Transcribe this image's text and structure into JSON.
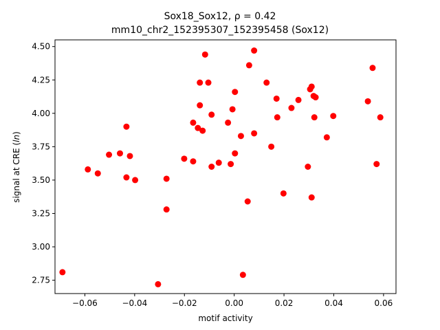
{
  "chart_data": {
    "type": "scatter",
    "title": "Sox18_Sox12, ρ = 0.42",
    "subtitle": "mm10_chr2_152395307_152395458 (Sox12)",
    "xlabel": "motif activity",
    "ylabel": "signal at CRE (ln)",
    "xlim": [
      -0.072,
      0.065
    ],
    "ylim": [
      2.65,
      4.55
    ],
    "x_ticks": [
      -0.06,
      -0.04,
      -0.02,
      0.0,
      0.02,
      0.04,
      0.06
    ],
    "x_tick_labels": [
      "−0.06",
      "−0.04",
      "−0.02",
      "0.00",
      "0.02",
      "0.04",
      "0.06"
    ],
    "y_ticks": [
      2.75,
      3.0,
      3.25,
      3.5,
      3.75,
      4.0,
      4.25,
      4.5
    ],
    "y_tick_labels": [
      "2.75",
      "3.00",
      "3.25",
      "3.50",
      "3.75",
      "4.00",
      "4.25",
      "4.50"
    ],
    "grid": false,
    "marker_color": "#ff0000",
    "points": [
      {
        "x": -0.069,
        "y": 2.81
      },
      {
        "x": -0.0588,
        "y": 3.58
      },
      {
        "x": -0.0548,
        "y": 3.55
      },
      {
        "x": -0.0503,
        "y": 3.69
      },
      {
        "x": -0.0459,
        "y": 3.7
      },
      {
        "x": -0.0433,
        "y": 3.9
      },
      {
        "x": -0.0433,
        "y": 3.52
      },
      {
        "x": -0.0419,
        "y": 3.68
      },
      {
        "x": -0.0398,
        "y": 3.5
      },
      {
        "x": -0.0306,
        "y": 2.72
      },
      {
        "x": -0.0272,
        "y": 3.51
      },
      {
        "x": -0.0272,
        "y": 3.28
      },
      {
        "x": -0.0201,
        "y": 3.66
      },
      {
        "x": -0.0165,
        "y": 3.93
      },
      {
        "x": -0.0165,
        "y": 3.64
      },
      {
        "x": -0.0146,
        "y": 3.89
      },
      {
        "x": -0.0138,
        "y": 4.23
      },
      {
        "x": -0.0138,
        "y": 4.06
      },
      {
        "x": -0.0127,
        "y": 3.87
      },
      {
        "x": -0.0117,
        "y": 4.44
      },
      {
        "x": -0.0104,
        "y": 4.23
      },
      {
        "x": -0.0091,
        "y": 3.99
      },
      {
        "x": -0.0091,
        "y": 3.6
      },
      {
        "x": -0.0062,
        "y": 3.63
      },
      {
        "x": -0.0025,
        "y": 3.93
      },
      {
        "x": -0.0014,
        "y": 3.62
      },
      {
        "x": -0.0007,
        "y": 4.03
      },
      {
        "x": 0.0003,
        "y": 4.16
      },
      {
        "x": 0.0003,
        "y": 3.7
      },
      {
        "x": 0.0027,
        "y": 3.83
      },
      {
        "x": 0.0035,
        "y": 2.79
      },
      {
        "x": 0.0054,
        "y": 3.34
      },
      {
        "x": 0.006,
        "y": 4.36
      },
      {
        "x": 0.008,
        "y": 4.47
      },
      {
        "x": 0.008,
        "y": 3.85
      },
      {
        "x": 0.013,
        "y": 4.23
      },
      {
        "x": 0.0149,
        "y": 3.75
      },
      {
        "x": 0.017,
        "y": 4.11
      },
      {
        "x": 0.0173,
        "y": 3.97
      },
      {
        "x": 0.0198,
        "y": 3.4
      },
      {
        "x": 0.023,
        "y": 4.04
      },
      {
        "x": 0.0258,
        "y": 4.1
      },
      {
        "x": 0.0296,
        "y": 3.6
      },
      {
        "x": 0.0305,
        "y": 4.18
      },
      {
        "x": 0.0311,
        "y": 4.2
      },
      {
        "x": 0.0311,
        "y": 3.37
      },
      {
        "x": 0.0319,
        "y": 4.13
      },
      {
        "x": 0.0322,
        "y": 3.97
      },
      {
        "x": 0.0327,
        "y": 4.12
      },
      {
        "x": 0.0372,
        "y": 3.82
      },
      {
        "x": 0.0398,
        "y": 3.98
      },
      {
        "x": 0.0537,
        "y": 4.09
      },
      {
        "x": 0.0556,
        "y": 4.34
      },
      {
        "x": 0.0572,
        "y": 3.62
      },
      {
        "x": 0.0587,
        "y": 3.97
      }
    ]
  }
}
